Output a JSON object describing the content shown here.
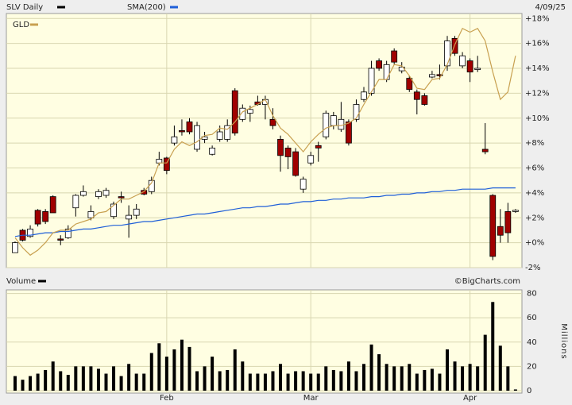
{
  "chart_data": [
    {
      "type": "candlestick",
      "date": "4/09/25",
      "series": [
        {
          "name": "SLV Daily",
          "color": "#000000",
          "up_color": "#ffffff",
          "down_color": "#a00000",
          "open": [
            -0.8,
            1.0,
            0.5,
            2.6,
            2.5,
            3.7,
            0.3,
            0.4,
            2.8,
            3.8,
            2.0,
            3.7,
            3.8,
            2.1,
            3.7,
            1.9,
            2.2,
            4.2,
            4.1,
            6.4,
            6.8,
            8.0,
            9.0,
            9.7,
            7.5,
            8.3,
            7.1,
            8.3,
            8.3,
            12.2,
            9.9,
            10.4,
            11.3,
            11.1,
            9.9,
            8.3,
            7.6,
            7.3,
            4.3,
            6.4,
            7.8,
            8.5,
            9.4,
            9.1,
            9.7,
            9.9,
            11.5,
            12.0,
            14.6,
            13.1,
            15.4,
            13.8,
            13.2,
            12.1,
            11.8,
            13.3,
            13.5,
            14.2,
            16.4,
            14.2,
            14.6,
            13.9,
            7.5,
            3.8,
            1.3,
            2.5,
            2.5
          ],
          "high": [
            0.1,
            1.1,
            1.4,
            2.7,
            2.7,
            3.8,
            0.6,
            1.4,
            3.9,
            4.6,
            3.0,
            4.3,
            4.4,
            3.3,
            4.1,
            3.0,
            3.1,
            4.4,
            5.3,
            7.3,
            6.9,
            9.4,
            9.9,
            10.0,
            9.7,
            8.9,
            7.8,
            9.4,
            9.9,
            12.4,
            11.1,
            11.0,
            11.8,
            11.8,
            10.8,
            8.6,
            7.8,
            7.6,
            5.3,
            7.3,
            8.1,
            10.6,
            10.5,
            11.3,
            9.9,
            11.5,
            12.5,
            14.6,
            14.8,
            14.6,
            15.6,
            14.5,
            13.4,
            12.3,
            12.0,
            13.8,
            14.3,
            16.6,
            16.6,
            15.3,
            14.8,
            15.0,
            9.6,
            3.9,
            2.7,
            3.2,
            2.7
          ],
          "low": [
            -0.8,
            0.1,
            0.4,
            1.3,
            1.5,
            2.4,
            -0.2,
            0.3,
            2.1,
            3.7,
            1.8,
            3.5,
            3.6,
            1.9,
            3.2,
            0.4,
            1.9,
            3.8,
            3.9,
            6.2,
            5.5,
            7.8,
            8.6,
            8.7,
            7.3,
            8.0,
            7.0,
            8.1,
            8.1,
            8.6,
            9.7,
            9.7,
            11.0,
            9.9,
            9.1,
            5.7,
            5.9,
            5.3,
            4.0,
            6.2,
            6.5,
            8.3,
            9.1,
            8.9,
            7.8,
            9.7,
            11.3,
            11.8,
            13.8,
            12.9,
            14.3,
            13.6,
            12.1,
            10.3,
            11.0,
            13.2,
            13.1,
            13.8,
            15.0,
            14.0,
            12.9,
            13.7,
            7.1,
            -1.4,
            0,
            0,
            2.4
          ],
          "close": [
            0,
            0.2,
            1.1,
            1.5,
            1.7,
            2.4,
            0.2,
            1.1,
            3.8,
            4.1,
            2.5,
            4.1,
            4.2,
            3.1,
            3.6,
            2.2,
            2.7,
            3.9,
            5.0,
            6.7,
            5.8,
            8.5,
            8.9,
            8.9,
            9.4,
            8.5,
            7.6,
            8.9,
            9.4,
            8.8,
            10.8,
            10.7,
            11.1,
            11.5,
            9.4,
            7.0,
            6.9,
            5.4,
            5.1,
            7.0,
            7.6,
            10.4,
            10.2,
            9.9,
            8.0,
            11.1,
            12.1,
            14.0,
            14.0,
            14.3,
            14.5,
            14.1,
            12.3,
            11.5,
            11.1,
            13.5,
            13.4,
            16.2,
            15.2,
            15.0,
            13.7,
            14.0,
            7.3,
            -1.1,
            0.6,
            0.8,
            2.6
          ]
        },
        {
          "name": "SMA(200)",
          "type": "line",
          "color": "#1f5fd8",
          "values": [
            0.5,
            0.6,
            0.6,
            0.7,
            0.8,
            0.8,
            0.9,
            0.9,
            1.0,
            1.1,
            1.1,
            1.2,
            1.3,
            1.4,
            1.4,
            1.5,
            1.6,
            1.7,
            1.7,
            1.8,
            1.9,
            2.0,
            2.1,
            2.2,
            2.3,
            2.3,
            2.4,
            2.5,
            2.6,
            2.7,
            2.8,
            2.8,
            2.9,
            2.9,
            3.0,
            3.1,
            3.1,
            3.2,
            3.3,
            3.3,
            3.4,
            3.4,
            3.5,
            3.5,
            3.6,
            3.6,
            3.6,
            3.7,
            3.7,
            3.8,
            3.8,
            3.9,
            3.9,
            4.0,
            4.0,
            4.1,
            4.1,
            4.2,
            4.2,
            4.3,
            4.3,
            4.3,
            4.3,
            4.4,
            4.4,
            4.4,
            4.4
          ]
        },
        {
          "name": "GLD",
          "type": "line",
          "color": "#c8a050",
          "values": [
            0.4,
            -0.4,
            -1.0,
            -0.6,
            0,
            0.8,
            1.0,
            1.0,
            1.5,
            1.7,
            1.9,
            2.4,
            2.5,
            3.0,
            3.5,
            3.5,
            3.8,
            4.1,
            4.8,
            6.4,
            6.4,
            7.5,
            8.1,
            7.8,
            8.1,
            8.6,
            8.7,
            9.2,
            9.1,
            9.7,
            10.5,
            10.8,
            11.1,
            11.5,
            10.2,
            9.2,
            8.7,
            8.0,
            7.3,
            8.1,
            8.7,
            9.2,
            9.4,
            9.4,
            9.6,
            10.0,
            11.1,
            12.1,
            13.1,
            13.1,
            14.3,
            14.2,
            13.4,
            12.4,
            12.3,
            13.1,
            13.2,
            14.3,
            15.9,
            17.2,
            16.9,
            17.2,
            16.2,
            13.7,
            11.5,
            12.1,
            15.0
          ]
        }
      ],
      "ylim": [
        -2,
        18.4
      ],
      "yticks": [
        {
          "value": -2,
          "label": "-2%"
        },
        {
          "value": 0,
          "label": "+0%"
        },
        {
          "value": 2,
          "label": "+2%"
        },
        {
          "value": 4,
          "label": "+4%"
        },
        {
          "value": 6,
          "label": "+6%"
        },
        {
          "value": 8,
          "label": "+8%"
        },
        {
          "value": 10,
          "label": "+10%"
        },
        {
          "value": 12,
          "label": "+12%"
        },
        {
          "value": 14,
          "label": "+14%"
        },
        {
          "value": 16,
          "label": "+16%"
        },
        {
          "value": 18,
          "label": "+18%"
        }
      ],
      "grid": true
    },
    {
      "type": "bar",
      "title": "Volume",
      "credit": "©BigCharts.com",
      "color": "#000000",
      "ylabel": "Millions",
      "categories": [
        null,
        null,
        null,
        null,
        null,
        null,
        null,
        null,
        null,
        null,
        null,
        null,
        null,
        null,
        null,
        null,
        null,
        null,
        null,
        null,
        "Feb",
        null,
        null,
        null,
        null,
        null,
        null,
        null,
        null,
        null,
        null,
        null,
        null,
        null,
        null,
        null,
        null,
        null,
        null,
        "Mar",
        null,
        null,
        null,
        null,
        null,
        null,
        null,
        null,
        null,
        null,
        null,
        null,
        null,
        null,
        null,
        null,
        null,
        null,
        null,
        null,
        "Apr",
        null,
        null,
        null,
        null,
        null,
        null
      ],
      "values": [
        12,
        9,
        12,
        14,
        17,
        24,
        16,
        13,
        20,
        20,
        20,
        18,
        14,
        20,
        12,
        22,
        14,
        14,
        31,
        39,
        28,
        34,
        42,
        36,
        16,
        20,
        28,
        16,
        17,
        34,
        24,
        14,
        14,
        14,
        16,
        22,
        14,
        16,
        16,
        14,
        14,
        20,
        17,
        16,
        24,
        16,
        22,
        38,
        30,
        22,
        20,
        20,
        22,
        14,
        17,
        18,
        14,
        34,
        24,
        20,
        22,
        20,
        46,
        73,
        37,
        20,
        1
      ],
      "ylim": [
        -2,
        83
      ],
      "yticks": [
        0,
        20,
        40,
        60,
        80
      ],
      "grid": true
    }
  ]
}
